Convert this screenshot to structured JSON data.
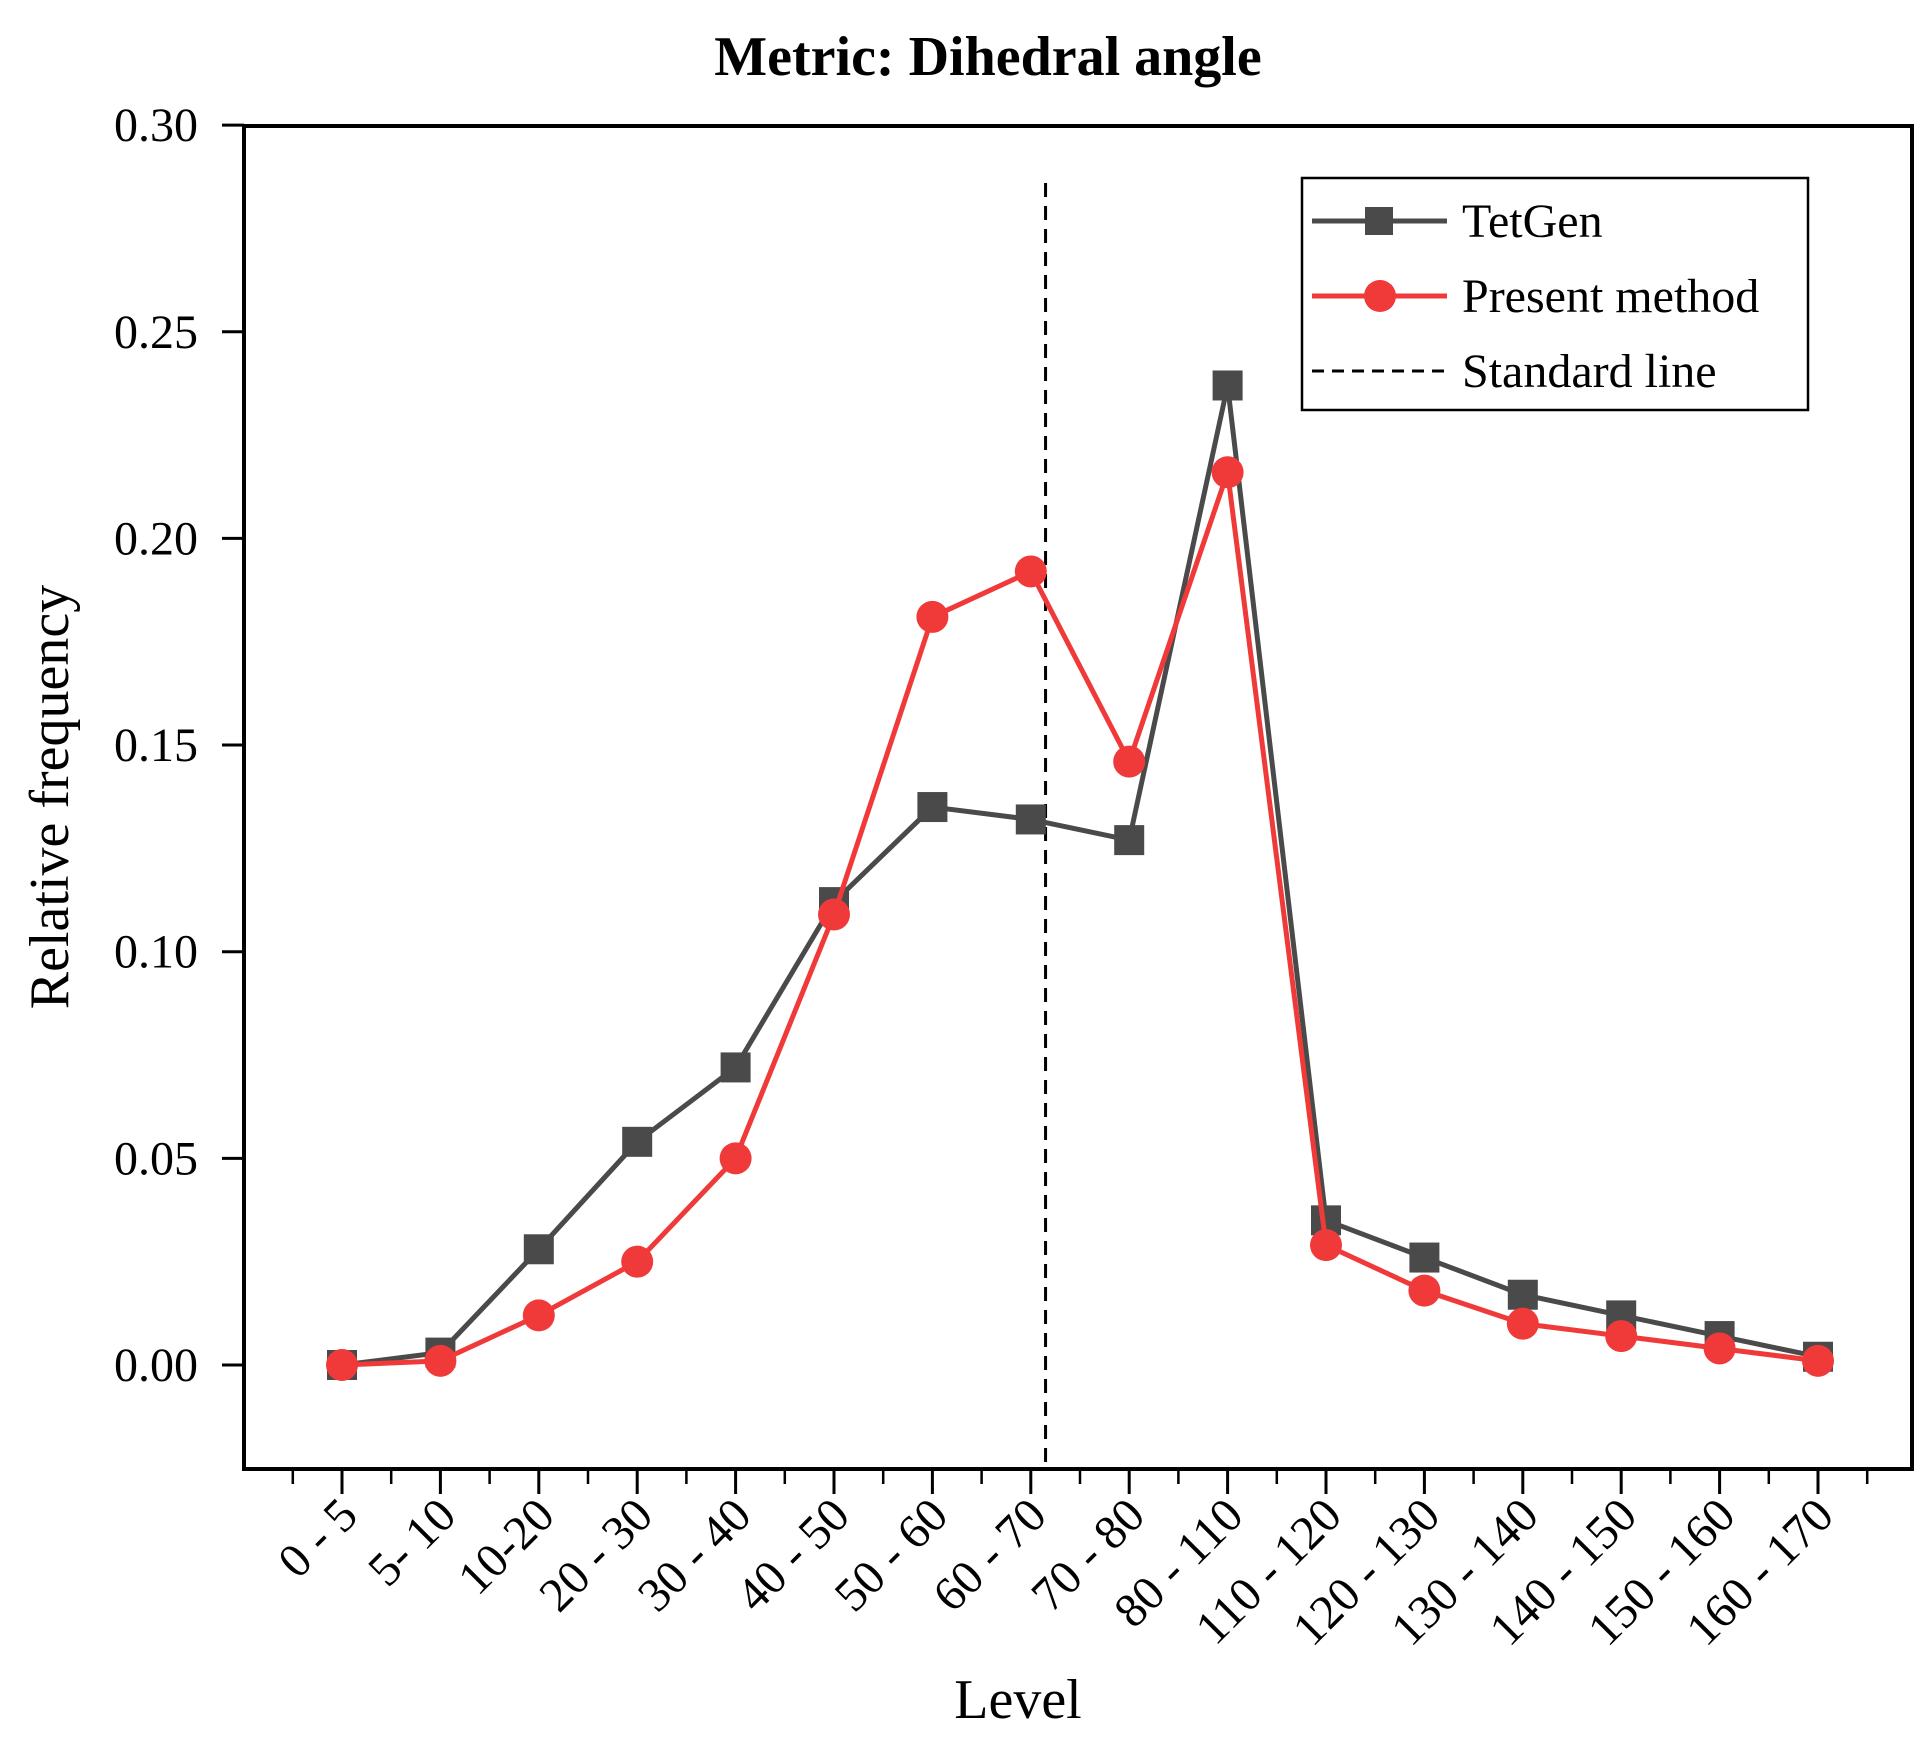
{
  "chart_data": {
    "type": "line",
    "title": "Metric: Dihedral angle",
    "xlabel": "Level",
    "ylabel": "Relative frequency",
    "categories": [
      "0 - 5",
      "5- 10",
      "10-20",
      "20 - 30",
      "30 - 40",
      "40 - 50",
      "50 - 60",
      "60 - 70",
      "70 - 80",
      "80 - 110",
      "110 - 120",
      "120 - 130",
      "130 - 140",
      "140 - 150",
      "150 - 160",
      "160 - 170"
    ],
    "yticks": [
      "0.00",
      "0.05",
      "0.10",
      "0.15",
      "0.20",
      "0.25",
      "0.30"
    ],
    "ylim": [
      -0.025,
      0.3
    ],
    "standard_line_x": 7.15,
    "standard_line_ytop": 0.286,
    "legend_position": "top-right",
    "series": [
      {
        "name": "TetGen",
        "marker": "square",
        "color": "#4a4a4a",
        "values": [
          0.0,
          0.003,
          0.028,
          0.054,
          0.072,
          0.112,
          0.135,
          0.132,
          0.127,
          0.237,
          0.035,
          0.026,
          0.017,
          0.012,
          0.007,
          0.002
        ]
      },
      {
        "name": "Present method",
        "marker": "circle",
        "color": "#f03a3a",
        "values": [
          0.0,
          0.001,
          0.012,
          0.025,
          0.05,
          0.109,
          0.181,
          0.192,
          0.146,
          0.216,
          0.029,
          0.018,
          0.01,
          0.007,
          0.004,
          0.001
        ]
      },
      {
        "name": "Standard line",
        "style": "dashed",
        "color": "#000000"
      }
    ]
  }
}
